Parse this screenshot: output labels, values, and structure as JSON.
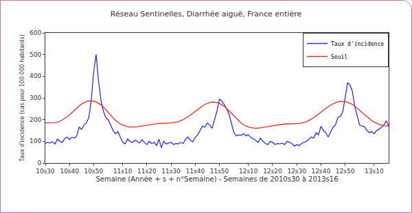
{
  "chart_data": {
    "type": "line",
    "title": "Réseau Sentinelles, Diarrhée aiguë, France entière",
    "x_label": "Semaine (Année + s + n°Semaine) - Semaines de 2010s30 à 2013s16",
    "y_label": "Taux d'incidence (cas pour 100 000 habitants)",
    "categories": [
      "10s30",
      null,
      null,
      null,
      null,
      null,
      null,
      null,
      null,
      null,
      "10s40",
      null,
      null,
      null,
      null,
      null,
      null,
      null,
      null,
      null,
      "10s50",
      null,
      null,
      null,
      null,
      null,
      null,
      null,
      null,
      null,
      null,
      null,
      "11s10",
      null,
      null,
      null,
      null,
      null,
      null,
      null,
      null,
      null,
      "11s20",
      null,
      null,
      null,
      null,
      null,
      null,
      null,
      null,
      null,
      "11s30",
      null,
      null,
      null,
      null,
      null,
      null,
      null,
      null,
      null,
      "11s40",
      null,
      null,
      null,
      null,
      null,
      null,
      null,
      null,
      null,
      "11s50",
      null,
      null,
      null,
      null,
      null,
      null,
      null,
      null,
      null,
      null,
      null,
      "12s10",
      null,
      null,
      null,
      null,
      null,
      null,
      null,
      null,
      null,
      "12s20",
      null,
      null,
      null,
      null,
      null,
      null,
      null,
      null,
      null,
      "12s30",
      null,
      null,
      null,
      null,
      null,
      null,
      null,
      null,
      null,
      "12s40",
      null,
      null,
      null,
      null,
      null,
      null,
      null,
      null,
      null,
      "12s50",
      null,
      null,
      null,
      null,
      null,
      null,
      null,
      null,
      null,
      null,
      null,
      "13s10",
      null,
      null,
      null,
      null,
      null,
      null
    ],
    "series": [
      {
        "name": "Taux d'incidence",
        "color": "#2b2bff",
        "values": [
          90,
          95,
          92,
          98,
          88,
          110,
          100,
          95,
          112,
          120,
          108,
          118,
          115,
          125,
          165,
          155,
          175,
          185,
          210,
          290,
          420,
          500,
          380,
          290,
          240,
          210,
          200,
          175,
          150,
          135,
          145,
          120,
          95,
          88,
          110,
          100,
          95,
          105,
          100,
          92,
          108,
          95,
          85,
          100,
          90,
          95,
          80,
          110,
          70,
          100,
          88,
          92,
          95,
          85,
          90,
          88,
          95,
          90,
          110,
          120,
          105,
          98,
          118,
          130,
          150,
          170,
          165,
          185,
          175,
          160,
          200,
          240,
          295,
          285,
          270,
          250,
          225,
          180,
          140,
          125,
          130,
          128,
          135,
          125,
          130,
          118,
          110,
          105,
          95,
          115,
          100,
          90,
          85,
          100,
          95,
          85,
          90,
          88,
          92,
          85,
          100,
          95,
          90,
          78,
          85,
          80,
          90,
          95,
          100,
          110,
          120,
          115,
          140,
          130,
          170,
          150,
          140,
          120,
          145,
          165,
          175,
          210,
          215,
          235,
          300,
          370,
          360,
          330,
          260,
          220,
          175,
          170,
          168,
          150,
          140,
          145,
          135,
          150,
          155,
          165,
          175,
          195,
          170
        ]
      },
      {
        "name": "Seuil",
        "color": "#ff2020",
        "values": [
          185,
          185,
          185,
          185,
          186,
          188,
          192,
          198,
          205,
          213,
          222,
          232,
          243,
          253,
          263,
          272,
          279,
          284,
          286,
          286,
          285,
          282,
          276,
          268,
          258,
          246,
          233,
          220,
          208,
          197,
          188,
          180,
          175,
          171,
          168,
          166,
          165,
          166,
          167,
          169,
          171,
          173,
          175,
          177,
          179,
          180,
          181,
          182,
          182,
          183,
          183,
          184,
          185,
          186,
          188,
          191,
          195,
          200,
          206,
          213,
          221,
          229,
          238,
          247,
          255,
          263,
          270,
          275,
          279,
          281,
          281,
          279,
          275,
          269,
          261,
          252,
          241,
          229,
          217,
          205,
          194,
          184,
          176,
          170,
          166,
          163,
          161,
          160,
          161,
          162,
          164,
          166,
          168,
          170,
          172,
          174,
          176,
          178,
          179,
          180,
          180,
          180,
          180,
          180,
          181,
          182,
          184,
          187,
          191,
          196,
          202,
          209,
          217,
          225,
          234,
          243,
          252,
          260,
          267,
          273,
          278,
          282,
          284,
          284,
          283,
          280,
          276,
          270,
          262,
          253,
          243,
          233,
          223,
          213,
          204,
          196,
          189,
          183,
          178,
          175,
          172,
          171,
          170
        ]
      }
    ],
    "ylim": [
      0,
      600
    ],
    "yticks": [
      0,
      100,
      200,
      300,
      400,
      500,
      600
    ],
    "grid": false,
    "legend": "top right"
  }
}
